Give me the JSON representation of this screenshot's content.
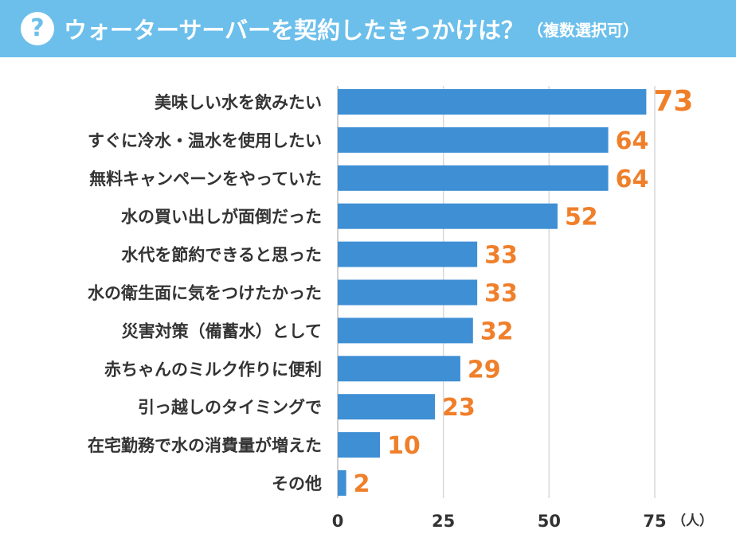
{
  "header": {
    "icon": "question-circle-icon",
    "title": "ウォーターサーバーを契約したきっかけは？",
    "subtitle": "（複数選択可）"
  },
  "colors": {
    "header_bg": "#6cbfeb",
    "bar": "#3e8fd4",
    "value_label": "#f07f2a",
    "grid": "#d9d9d9",
    "axis_text": "#333333"
  },
  "chart_data": {
    "type": "bar",
    "orientation": "horizontal",
    "categories": [
      "美味しい水を飲みたい",
      "すぐに冷水・温水を使用したい",
      "無料キャンペーンをやっていた",
      "水の買い出しが面倒だった",
      "水代を節約できると思った",
      "水の衛生面に気をつけたかった",
      "災害対策（備蓄水）として",
      "赤ちゃんのミルク作りに便利",
      "引っ越しのタイミングで",
      "在宅勤務で水の消費量が増えた",
      "その他"
    ],
    "values": [
      73,
      64,
      64,
      52,
      33,
      33,
      32,
      29,
      23,
      10,
      2
    ],
    "xlim": [
      0,
      75
    ],
    "xticks": [
      0,
      25,
      50,
      75
    ],
    "xunit": "（人）",
    "grid": true
  }
}
